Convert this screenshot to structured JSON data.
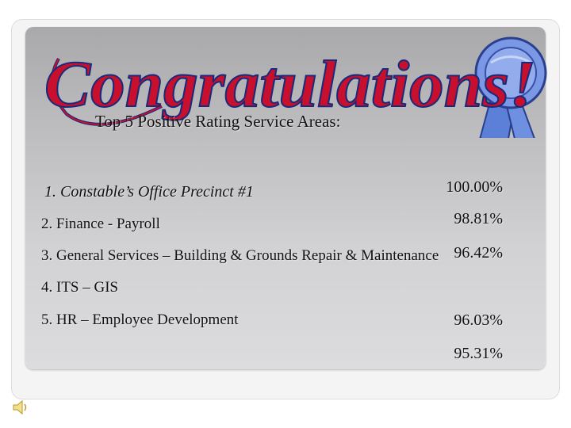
{
  "banner": {
    "heading": "Congratulations!"
  },
  "subtitle": "Top 5 Positive Rating Service Areas:",
  "items": [
    "1. Constable’s Office Precinct #1",
    "2. Finance - Payroll",
    "3. General Services – Building & Grounds Repair & Maintenance",
    "4. ITS – GIS",
    "5. HR – Employee Development"
  ],
  "percentages": [
    "100.00%",
    "98.81%",
    "96.42%",
    "96.03%",
    "95.31%"
  ],
  "colors": {
    "banner_text": "#c8102e",
    "banner_outline": "#1a2a7a",
    "ribbon": "#6f8fe0"
  },
  "icons": [
    "ribbon-award-icon",
    "audio-speaker-icon"
  ]
}
